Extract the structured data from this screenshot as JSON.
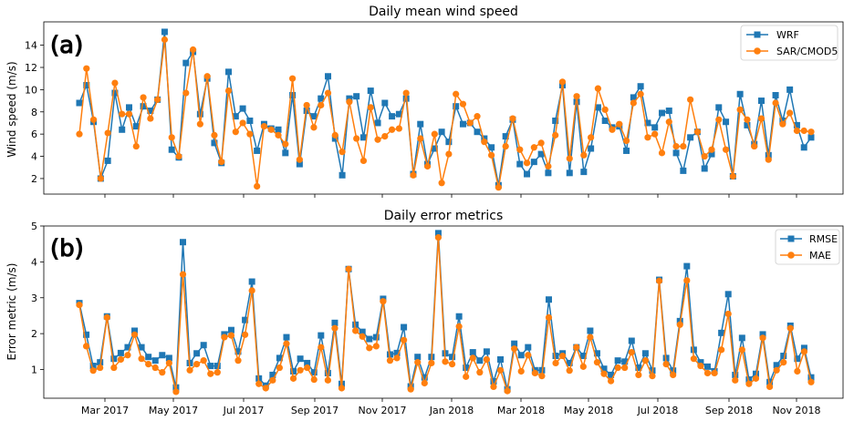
{
  "colors": {
    "series1": "#1f77b4",
    "series2": "#ff7f0e",
    "axis": "#000000",
    "background": "#ffffff"
  },
  "x_ticks": [
    "Mar 2017",
    "May 2017",
    "Jul 2017",
    "Sep 2017",
    "Nov 2017",
    "Jan 2018",
    "Mar 2018",
    "May 2018",
    "Jul 2018",
    "Sep 2018",
    "Nov 2018"
  ],
  "chart_data": [
    {
      "type": "line",
      "panel_label": "(a)",
      "title": "Daily mean wind speed",
      "xlabel": "",
      "ylabel": "Wind speed (m/s)",
      "ylim": [
        0.6,
        16.1
      ],
      "yticks": [
        2,
        4,
        6,
        8,
        10,
        12,
        14
      ],
      "legend_position": "top-right",
      "x_index_range": [
        0,
        100
      ],
      "series": [
        {
          "name": "WRF",
          "marker": "square",
          "values": [
            8.8,
            10.4,
            7.1,
            2.0,
            3.6,
            9.7,
            6.4,
            8.4,
            6.7,
            8.5,
            8.1,
            9.1,
            15.2,
            4.6,
            3.9,
            12.4,
            13.4,
            7.8,
            11.0,
            5.2,
            3.4,
            11.6,
            7.6,
            8.3,
            7.2,
            4.5,
            6.9,
            6.5,
            6.4,
            4.3,
            9.5,
            3.3,
            8.1,
            7.6,
            9.2,
            11.2,
            5.6,
            2.3,
            9.2,
            9.4,
            5.7,
            9.9,
            7.0,
            8.8,
            7.6,
            7.8,
            9.2,
            2.4,
            6.9,
            3.3,
            4.7,
            6.2,
            5.3,
            8.5,
            6.9,
            7.0,
            6.2,
            5.6,
            4.8,
            1.4,
            5.8,
            7.3,
            3.3,
            2.4,
            3.5,
            4.2,
            2.5,
            7.2,
            10.4,
            2.5,
            8.9,
            2.6,
            4.7,
            8.4,
            7.2,
            6.6,
            6.7,
            4.5,
            9.3,
            10.3,
            7.0,
            6.6,
            7.9,
            8.1,
            4.3,
            2.7,
            5.7,
            6.2,
            2.9,
            4.2,
            8.4,
            7.1,
            2.2,
            9.6,
            6.8,
            5.1,
            9.0,
            4.1,
            9.5,
            7.2,
            10.0,
            6.8,
            4.8,
            5.7
          ]
        },
        {
          "name": "SAR/CMOD5",
          "marker": "circle",
          "values": [
            6.0,
            11.9,
            7.3,
            2.0,
            6.1,
            10.6,
            7.8,
            7.8,
            4.9,
            9.3,
            7.4,
            9.1,
            14.5,
            5.7,
            4.0,
            9.7,
            13.6,
            6.9,
            11.2,
            5.9,
            3.5,
            9.9,
            6.2,
            7.0,
            6.0,
            1.3,
            6.7,
            6.4,
            5.9,
            5.1,
            11.0,
            3.7,
            8.6,
            6.6,
            8.6,
            9.7,
            5.9,
            4.4,
            8.9,
            5.6,
            3.6,
            8.4,
            5.5,
            5.8,
            6.4,
            6.5,
            9.7,
            2.3,
            5.6,
            3.1,
            6.0,
            1.6,
            4.2,
            9.6,
            8.7,
            7.0,
            7.6,
            5.3,
            4.1,
            1.2,
            4.9,
            7.4,
            4.6,
            3.4,
            4.8,
            5.2,
            3.1,
            5.9,
            10.7,
            3.8,
            9.4,
            4.1,
            5.7,
            10.1,
            8.2,
            6.4,
            6.9,
            5.4,
            8.8,
            9.6,
            5.7,
            6.0,
            4.3,
            7.1,
            4.9,
            4.9,
            9.1,
            6.2,
            4.0,
            4.6,
            7.3,
            4.6,
            2.2,
            8.2,
            7.3,
            4.9,
            7.4,
            3.7,
            8.8,
            6.9,
            7.9,
            6.3,
            6.3,
            6.2
          ]
        }
      ]
    },
    {
      "type": "line",
      "panel_label": "(b)",
      "title": "Daily error metrics",
      "xlabel": "",
      "ylabel": "Error metric (m/s)",
      "ylim": [
        0.2,
        5.0
      ],
      "yticks": [
        1,
        2,
        3,
        4,
        5
      ],
      "legend_position": "top-right",
      "x_index_range": [
        0,
        100
      ],
      "series": [
        {
          "name": "RMSE",
          "marker": "square",
          "values": [
            2.85,
            1.97,
            1.1,
            1.2,
            2.48,
            1.3,
            1.46,
            1.62,
            2.08,
            1.62,
            1.35,
            1.25,
            1.4,
            1.32,
            0.5,
            4.55,
            1.18,
            1.45,
            1.68,
            1.1,
            1.1,
            1.98,
            2.1,
            1.5,
            2.38,
            3.45,
            0.75,
            0.55,
            0.85,
            1.32,
            1.9,
            0.95,
            1.3,
            1.18,
            0.92,
            1.95,
            0.9,
            2.3,
            0.6,
            3.8,
            2.25,
            2.05,
            1.85,
            1.9,
            2.97,
            1.42,
            1.46,
            2.18,
            0.53,
            1.35,
            0.78,
            1.35,
            4.8,
            1.45,
            1.35,
            2.48,
            1.05,
            1.48,
            1.25,
            1.5,
            0.67,
            1.28,
            0.45,
            1.72,
            1.4,
            1.62,
            0.98,
            0.98,
            2.95,
            1.38,
            1.45,
            1.18,
            1.62,
            1.38,
            2.08,
            1.45,
            1.02,
            0.85,
            1.25,
            1.22,
            1.8,
            1.05,
            1.45,
            0.97,
            3.5,
            1.32,
            0.97,
            2.35,
            3.88,
            1.55,
            1.2,
            1.08,
            0.95,
            2.02,
            3.1,
            0.85,
            1.88,
            0.72,
            0.88,
            1.98,
            0.65,
            1.12,
            1.38,
            2.22,
            1.3,
            1.6,
            0.78
          ]
        },
        {
          "name": "MAE",
          "marker": "circle",
          "values": [
            2.8,
            1.65,
            0.97,
            1.05,
            2.45,
            1.05,
            1.28,
            1.4,
            1.97,
            1.3,
            1.15,
            1.05,
            0.92,
            1.18,
            0.38,
            3.65,
            0.98,
            1.15,
            1.25,
            0.88,
            0.92,
            1.9,
            1.95,
            1.25,
            1.97,
            3.2,
            0.6,
            0.48,
            0.7,
            1.05,
            1.72,
            0.75,
            0.98,
            1.05,
            0.72,
            1.62,
            0.7,
            2.15,
            0.48,
            3.8,
            2.08,
            1.92,
            1.6,
            1.65,
            2.9,
            1.25,
            1.32,
            1.82,
            0.45,
            1.2,
            0.62,
            1.18,
            4.68,
            1.22,
            1.15,
            2.2,
            0.8,
            1.32,
            0.92,
            1.28,
            0.52,
            0.98,
            0.4,
            1.58,
            0.95,
            1.4,
            0.9,
            0.82,
            2.45,
            1.18,
            1.38,
            0.97,
            1.62,
            1.08,
            1.9,
            1.2,
            0.88,
            0.68,
            1.05,
            1.05,
            1.48,
            0.85,
            1.25,
            0.82,
            3.47,
            1.15,
            0.85,
            2.25,
            3.48,
            1.3,
            1.1,
            0.9,
            0.9,
            1.55,
            2.55,
            0.7,
            1.55,
            0.6,
            0.75,
            1.88,
            0.52,
            0.98,
            1.2,
            2.15,
            0.95,
            1.5,
            0.65
          ]
        }
      ]
    }
  ]
}
